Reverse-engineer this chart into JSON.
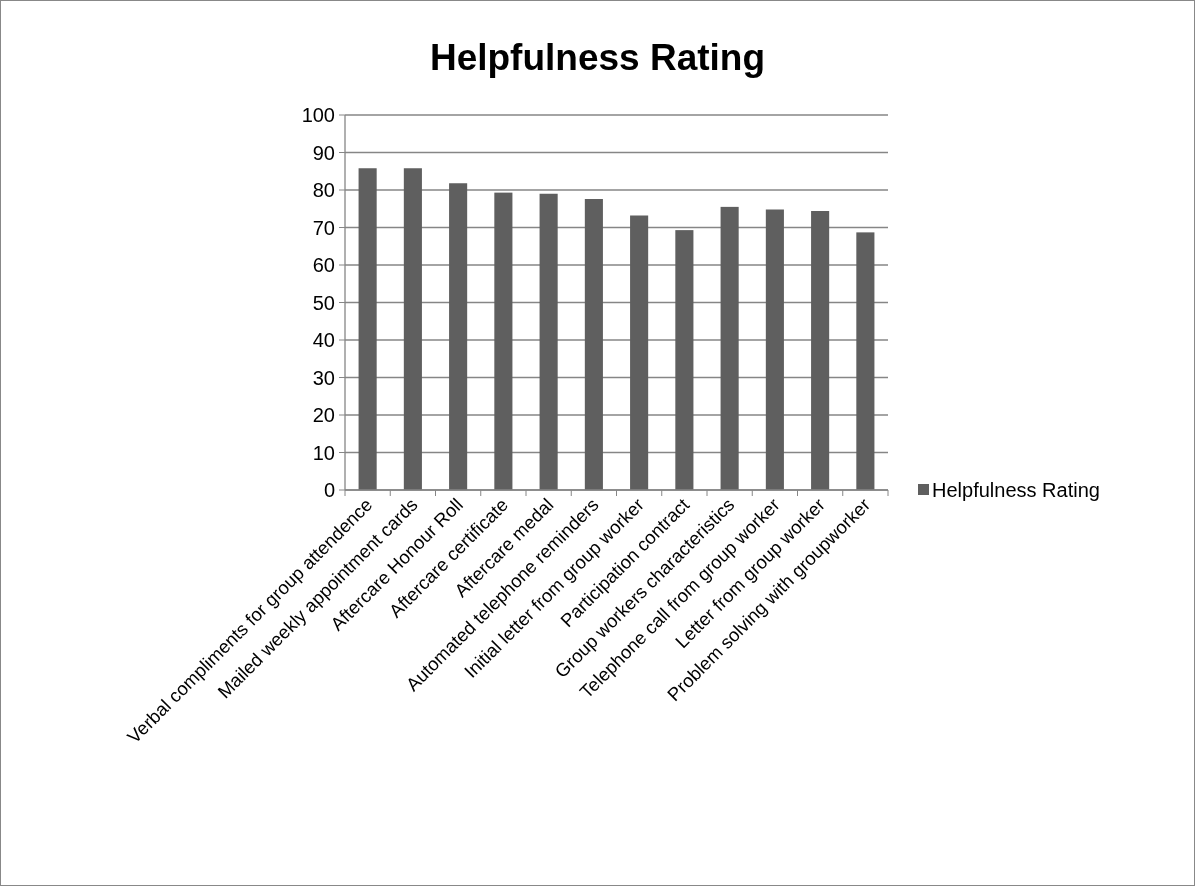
{
  "chart_data": {
    "type": "bar",
    "title": "Helpfulness Rating",
    "categories": [
      "Verbal compliments for group attendence",
      "Mailed weekly appointment cards",
      "Aftercare Honour Roll",
      "Aftercare certificate",
      "Aftercare medal",
      "Automated telephone reminders",
      "Initial letter from group worker",
      "Participation contract",
      "Group workers characteristics",
      "Telephone call from group worker",
      "Letter from group worker",
      "Problem solving with groupworker"
    ],
    "series": [
      {
        "name": "Helpfulness Rating",
        "color": "#5f5f5f",
        "values": [
          85.8,
          85.8,
          81.8,
          79.3,
          79.0,
          77.6,
          73.2,
          69.3,
          75.5,
          74.8,
          74.4,
          68.7
        ]
      }
    ],
    "ylim": [
      0,
      100
    ],
    "yticks": [
      0,
      10,
      20,
      30,
      40,
      50,
      60,
      70,
      80,
      90,
      100
    ],
    "grid": "y",
    "legend": "right"
  }
}
